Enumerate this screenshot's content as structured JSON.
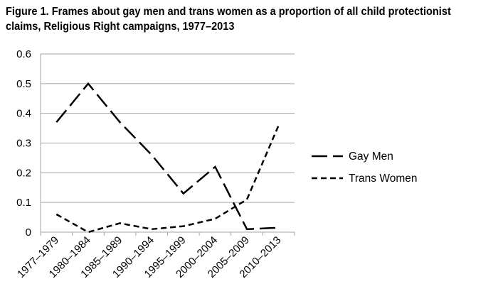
{
  "chart_data": {
    "type": "line",
    "title_line1": "Figure 1.  Frames about gay men and trans women as a proportion of all child protectionist",
    "title_line2": "claims, Religious Right campaigns, 1977–2013",
    "xlabel": "",
    "ylabel": "",
    "categories": [
      "1977–1979",
      "1980–1984",
      "1985–1989",
      "1990–1994",
      "1995–1999",
      "2000–2004",
      "2005–2009",
      "2010–2013"
    ],
    "yticks": [
      "0",
      "0.1",
      "0.2",
      "0.3",
      "0.4",
      "0.5",
      "0.6"
    ],
    "ylim": [
      0,
      0.6
    ],
    "grid": true,
    "legend_position": "right",
    "series": [
      {
        "name": "Gay Men",
        "dash": "long-dash",
        "color": "#000000",
        "values": [
          0.37,
          0.5,
          0.37,
          0.26,
          0.13,
          0.22,
          0.01,
          0.015
        ]
      },
      {
        "name": "Trans Women",
        "dash": "short-dash",
        "color": "#000000",
        "values": [
          0.06,
          0.0,
          0.03,
          0.01,
          0.02,
          0.045,
          0.11,
          0.36
        ]
      }
    ],
    "gridline_color": "#a6a6a6"
  }
}
